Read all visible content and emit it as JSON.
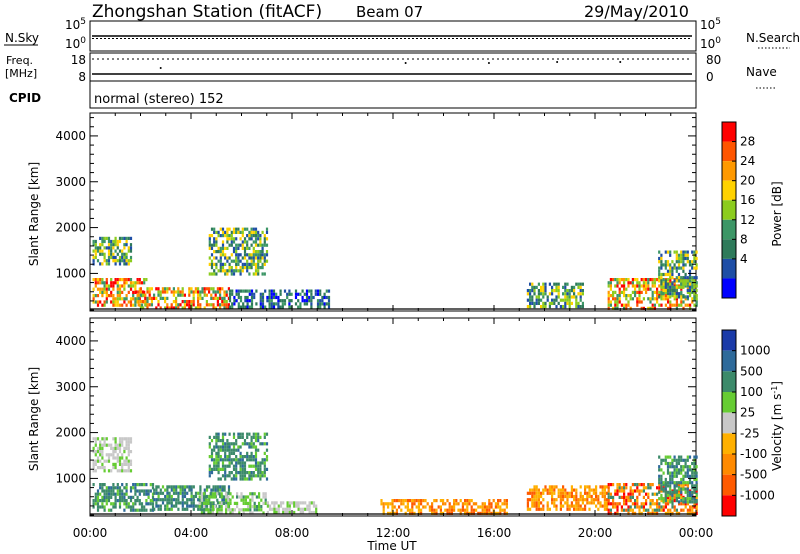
{
  "header": {
    "title": "Zhongshan Station (fitACF)",
    "beam": "Beam 07",
    "date": "29/May/2010"
  },
  "top_panels": {
    "nsky_label": "N.Sky",
    "nsky_ticks": [
      "10^5",
      "10^0"
    ],
    "nsearch_label": "N.Search",
    "nsearch_ticks": [
      "10^5",
      "10^0"
    ],
    "freq_label_1": "Freq.",
    "freq_label_2": "[MHz]",
    "freq_ticks": [
      "18",
      "8"
    ],
    "nave_label": "Nave",
    "nave_ticks": [
      "80",
      "0"
    ],
    "cpid_label": "CPID",
    "cpid_text": "normal (stereo) 152"
  },
  "time_axis": {
    "label": "Time UT",
    "ticks": [
      "00:00",
      "04:00",
      "08:00",
      "12:00",
      "16:00",
      "20:00",
      "00:00"
    ]
  },
  "power_colorbar": {
    "label": "Power [dB]",
    "ticks": [
      "28",
      "24",
      "20",
      "16",
      "12",
      "8",
      "4"
    ],
    "colors": [
      "#ff0000",
      "#ff5500",
      "#ff9900",
      "#ffd200",
      "#8ccc1e",
      "#3c9666",
      "#2e7a5a",
      "#1e4ea6",
      "#0000ff"
    ]
  },
  "velocity_colorbar": {
    "label": "Velocity [m s^-1]",
    "ticks": [
      "1000",
      "500",
      "100",
      "25",
      "-25",
      "-100",
      "-500",
      "-1000"
    ],
    "colors": [
      "#1a3aa8",
      "#2e6a9a",
      "#3c8a6a",
      "#66cc33",
      "#c8c8c8",
      "#ffb000",
      "#ff8a00",
      "#ff5a00",
      "#ff0000"
    ]
  },
  "chart_data": [
    {
      "type": "heatmap",
      "title": "Power",
      "xlabel": "Time UT",
      "ylabel": "Slant Range [km]",
      "xlim": [
        "00:00",
        "24:00"
      ],
      "ylim": [
        180,
        4500
      ],
      "yticks": [
        1000,
        2000,
        3000,
        4000
      ],
      "colorbar_label": "Power [dB]",
      "regions": [
        {
          "t0": 0.1,
          "t1": 2.2,
          "r0": 300,
          "r1": 900,
          "level": "high"
        },
        {
          "t0": 1.8,
          "t1": 5.5,
          "r0": 250,
          "r1": 700,
          "level": "high"
        },
        {
          "t0": 5.5,
          "t1": 9.5,
          "r0": 300,
          "r1": 650,
          "level": "low"
        },
        {
          "t0": 0.1,
          "t1": 1.6,
          "r0": 1200,
          "r1": 1800,
          "level": "mid"
        },
        {
          "t0": 4.7,
          "t1": 7.0,
          "r0": 1000,
          "r1": 2000,
          "level": "mid"
        },
        {
          "t0": 17.3,
          "t1": 19.5,
          "r0": 300,
          "r1": 800,
          "level": "mid"
        },
        {
          "t0": 20.5,
          "t1": 24.0,
          "r0": 250,
          "r1": 900,
          "level": "high"
        },
        {
          "t0": 22.5,
          "t1": 24.0,
          "r0": 500,
          "r1": 1500,
          "level": "mid"
        }
      ]
    },
    {
      "type": "heatmap",
      "title": "Velocity",
      "xlabel": "Time UT",
      "ylabel": "Slant Range [km]",
      "xlim": [
        "00:00",
        "24:00"
      ],
      "ylim": [
        180,
        4500
      ],
      "yticks": [
        1000,
        2000,
        3000,
        4000
      ],
      "colorbar_label": "Velocity [m s^-1]",
      "regions": [
        {
          "t0": 0.1,
          "t1": 2.5,
          "r0": 300,
          "r1": 900,
          "level": "pos_small"
        },
        {
          "t0": 2.5,
          "t1": 5.5,
          "r0": 300,
          "r1": 850,
          "level": "pos_small"
        },
        {
          "t0": 4.3,
          "t1": 7.0,
          "r0": 250,
          "r1": 700,
          "level": "pos_tiny"
        },
        {
          "t0": 0.1,
          "t1": 1.6,
          "r0": 1200,
          "r1": 1900,
          "level": "zero"
        },
        {
          "t0": 4.7,
          "t1": 7.0,
          "r0": 1000,
          "r1": 2000,
          "level": "pos_small"
        },
        {
          "t0": 7.0,
          "t1": 9.0,
          "r0": 250,
          "r1": 500,
          "level": "zero"
        },
        {
          "t0": 11.5,
          "t1": 16.5,
          "r0": 250,
          "r1": 550,
          "level": "neg_small"
        },
        {
          "t0": 17.3,
          "t1": 20.5,
          "r0": 300,
          "r1": 850,
          "level": "neg_small"
        },
        {
          "t0": 20.5,
          "t1": 24.0,
          "r0": 250,
          "r1": 900,
          "level": "neg_mid"
        },
        {
          "t0": 22.5,
          "t1": 24.0,
          "r0": 500,
          "r1": 1500,
          "level": "pos_small"
        }
      ]
    }
  ]
}
